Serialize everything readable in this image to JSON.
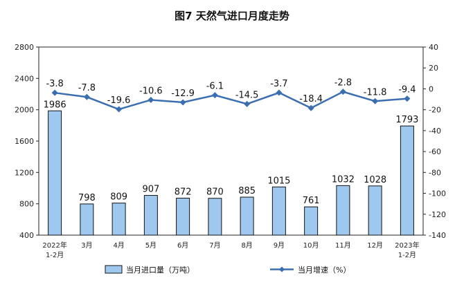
{
  "chart_data": {
    "type": "bar+line",
    "title": "图7  天然气进口月度走势",
    "categories": [
      "2022年\n1-2月",
      "3月",
      "4月",
      "5月",
      "6月",
      "7月",
      "8月",
      "9月",
      "10月",
      "11月",
      "12月",
      "2023年\n1-2月"
    ],
    "series": [
      {
        "name": "当月进口量（万吨）",
        "type": "bar",
        "axis": "left",
        "color": "#9ec8ee",
        "border": "#111111",
        "values": [
          1986,
          798,
          809,
          907,
          872,
          870,
          885,
          1015,
          761,
          1032,
          1028,
          1793
        ]
      },
      {
        "name": "当月增速（%）",
        "type": "line",
        "axis": "right",
        "color": "#3a6eb0",
        "values": [
          -3.8,
          -7.8,
          -19.6,
          -10.6,
          -12.9,
          -6.1,
          -14.5,
          -3.7,
          -18.4,
          -2.8,
          -11.8,
          -9.4
        ]
      }
    ],
    "y_left": {
      "ylim": [
        400,
        2800
      ],
      "ticks": [
        400,
        800,
        1200,
        1600,
        2000,
        2400,
        2800
      ]
    },
    "y_right": {
      "ylim": [
        -140,
        40
      ],
      "ticks": [
        -140,
        -120,
        -100,
        -80,
        -60,
        -40,
        -20,
        0,
        20,
        40
      ]
    },
    "grid": false,
    "legend": "bottom"
  }
}
